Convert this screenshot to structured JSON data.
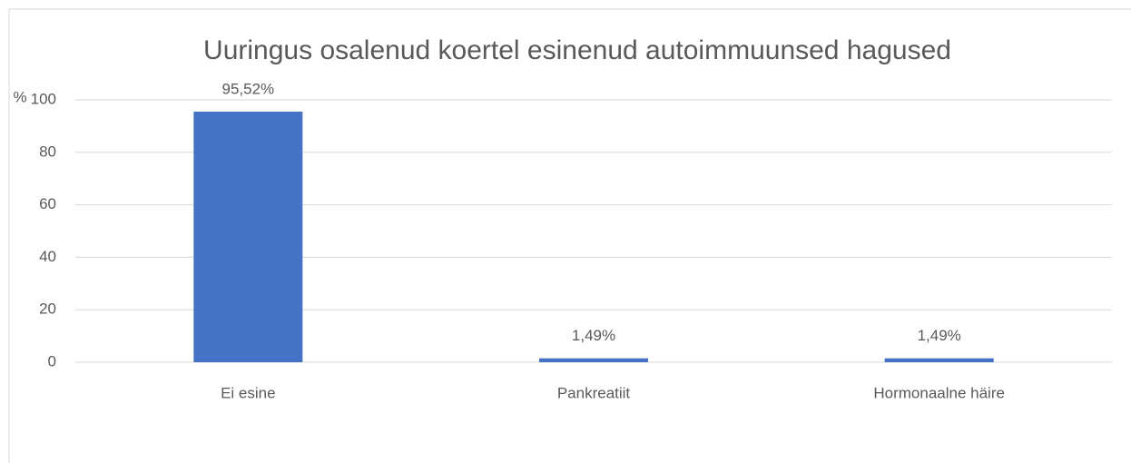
{
  "chart_data": {
    "type": "bar",
    "title": "Uuringus osalenud koertel esinenud autoimmuunsed hagused",
    "y_label": "%",
    "categories": [
      "Ei esine",
      "Pankreatiit",
      "Hormonaalne häire"
    ],
    "values": [
      95.52,
      1.49,
      1.49
    ],
    "value_labels": [
      "95,52%",
      "1,49%",
      "1,49%"
    ],
    "color": "#4472c4",
    "ylim": [
      0,
      100
    ],
    "yticks": [
      0,
      20,
      40,
      60,
      80,
      100
    ],
    "grid": true
  }
}
